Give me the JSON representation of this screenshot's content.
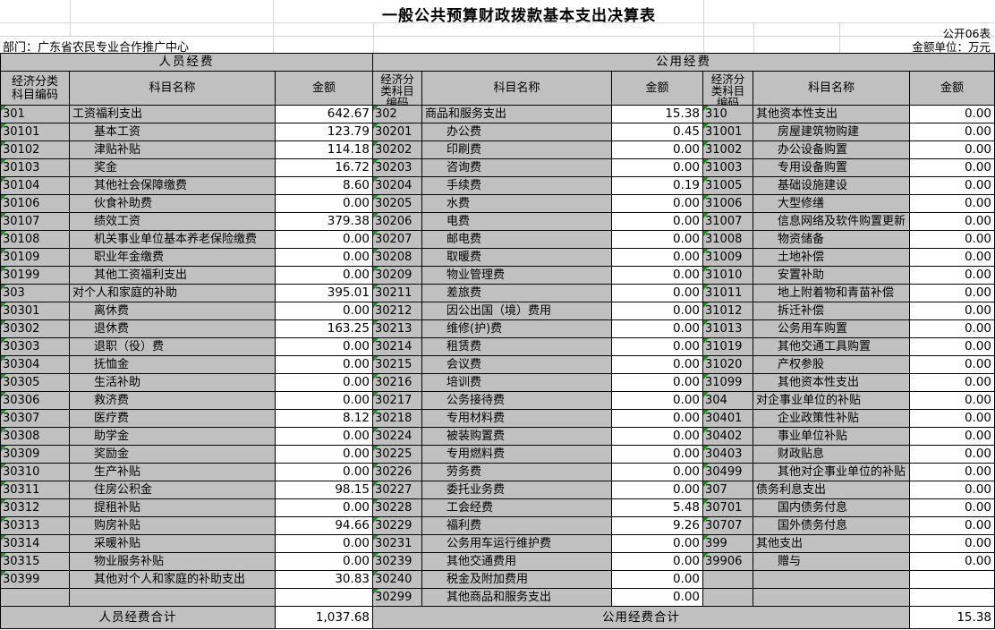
{
  "title": "一般公共预算财政拨款基本支出决算表",
  "meta": {
    "sheet_no": "公开06表",
    "department": "部门：广东省农民专业合作推广中心",
    "unit_label": "金额单位：万元"
  },
  "table": {
    "group_headers": [
      "人员经费",
      "公用经费"
    ],
    "column_headers": {
      "code": "经济分类科目编码",
      "code_lines_left": "经济分类\n科目编码",
      "code_lines_narrow": "经济分\n类科目\n编码",
      "subject": "科目名称",
      "amount": "金额"
    },
    "personnel": {
      "rows": [
        {
          "code": "301",
          "name": "工资福利支出",
          "amount": "642.67",
          "indent": 0
        },
        {
          "code": "30101",
          "name": "基本工资",
          "amount": "123.79",
          "indent": 1
        },
        {
          "code": "30102",
          "name": "津贴补贴",
          "amount": "114.18",
          "indent": 1
        },
        {
          "code": "30103",
          "name": "奖金",
          "amount": "16.72",
          "indent": 1
        },
        {
          "code": "30104",
          "name": "其他社会保障缴费",
          "amount": "8.60",
          "indent": 1
        },
        {
          "code": "30106",
          "name": "伙食补助费",
          "amount": "0.00",
          "indent": 1
        },
        {
          "code": "30107",
          "name": "绩效工资",
          "amount": "379.38",
          "indent": 1
        },
        {
          "code": "30108",
          "name": "机关事业单位基本养老保险缴费",
          "amount": "0.00",
          "indent": 1
        },
        {
          "code": "30109",
          "name": "职业年金缴费",
          "amount": "0.00",
          "indent": 1
        },
        {
          "code": "30199",
          "name": "其他工资福利支出",
          "amount": "0.00",
          "indent": 1
        },
        {
          "code": "303",
          "name": "对个人和家庭的补助",
          "amount": "395.01",
          "indent": 0
        },
        {
          "code": "30301",
          "name": "离休费",
          "amount": "0.00",
          "indent": 1
        },
        {
          "code": "30302",
          "name": "退休费",
          "amount": "163.25",
          "indent": 1
        },
        {
          "code": "30303",
          "name": "退职（役）费",
          "amount": "0.00",
          "indent": 1
        },
        {
          "code": "30304",
          "name": "抚恤金",
          "amount": "0.00",
          "indent": 1
        },
        {
          "code": "30305",
          "name": "生活补助",
          "amount": "0.00",
          "indent": 1
        },
        {
          "code": "30306",
          "name": "救济费",
          "amount": "0.00",
          "indent": 1
        },
        {
          "code": "30307",
          "name": "医疗费",
          "amount": "8.12",
          "indent": 1
        },
        {
          "code": "30308",
          "name": "助学金",
          "amount": "0.00",
          "indent": 1
        },
        {
          "code": "30309",
          "name": "奖励金",
          "amount": "0.00",
          "indent": 1
        },
        {
          "code": "30310",
          "name": "生产补贴",
          "amount": "0.00",
          "indent": 1
        },
        {
          "code": "30311",
          "name": "住房公积金",
          "amount": "98.15",
          "indent": 1
        },
        {
          "code": "30312",
          "name": "提租补贴",
          "amount": "0.00",
          "indent": 1
        },
        {
          "code": "30313",
          "name": "购房补贴",
          "amount": "94.66",
          "indent": 1
        },
        {
          "code": "30314",
          "name": "采暖补贴",
          "amount": "0.00",
          "indent": 1
        },
        {
          "code": "30315",
          "name": "物业服务补贴",
          "amount": "0.00",
          "indent": 1
        },
        {
          "code": "30399",
          "name": "其他对个人和家庭的补助支出",
          "amount": "30.83",
          "indent": 1
        },
        {
          "code": "",
          "name": "",
          "amount": "",
          "indent": 0
        }
      ],
      "total_label": "人员经费合计",
      "total": "1,037.68"
    },
    "public_service": {
      "rows": [
        {
          "code": "302",
          "name": "商品和服务支出",
          "amount": "15.38",
          "indent": 0
        },
        {
          "code": "30201",
          "name": "办公费",
          "amount": "0.45",
          "indent": 1
        },
        {
          "code": "30202",
          "name": "印刷费",
          "amount": "0.00",
          "indent": 1
        },
        {
          "code": "30203",
          "name": "咨询费",
          "amount": "0.00",
          "indent": 1
        },
        {
          "code": "30204",
          "name": "手续费",
          "amount": "0.19",
          "indent": 1
        },
        {
          "code": "30205",
          "name": "水费",
          "amount": "0.00",
          "indent": 1
        },
        {
          "code": "30206",
          "name": "电费",
          "amount": "0.00",
          "indent": 1
        },
        {
          "code": "30207",
          "name": "邮电费",
          "amount": "0.00",
          "indent": 1
        },
        {
          "code": "30208",
          "name": "取暖费",
          "amount": "0.00",
          "indent": 1
        },
        {
          "code": "30209",
          "name": "物业管理费",
          "amount": "0.00",
          "indent": 1
        },
        {
          "code": "30211",
          "name": "差旅费",
          "amount": "0.00",
          "indent": 1
        },
        {
          "code": "30212",
          "name": "因公出国（境）费用",
          "amount": "0.00",
          "indent": 1
        },
        {
          "code": "30213",
          "name": "维修(护)费",
          "amount": "0.00",
          "indent": 1
        },
        {
          "code": "30214",
          "name": "租赁费",
          "amount": "0.00",
          "indent": 1
        },
        {
          "code": "30215",
          "name": "会议费",
          "amount": "0.00",
          "indent": 1
        },
        {
          "code": "30216",
          "name": "培训费",
          "amount": "0.00",
          "indent": 1
        },
        {
          "code": "30217",
          "name": "公务接待费",
          "amount": "0.00",
          "indent": 1
        },
        {
          "code": "30218",
          "name": "专用材料费",
          "amount": "0.00",
          "indent": 1
        },
        {
          "code": "30224",
          "name": "被装购置费",
          "amount": "0.00",
          "indent": 1
        },
        {
          "code": "30225",
          "name": "专用燃料费",
          "amount": "0.00",
          "indent": 1
        },
        {
          "code": "30226",
          "name": "劳务费",
          "amount": "0.00",
          "indent": 1
        },
        {
          "code": "30227",
          "name": "委托业务费",
          "amount": "0.00",
          "indent": 1
        },
        {
          "code": "30228",
          "name": "工会经费",
          "amount": "5.48",
          "indent": 1
        },
        {
          "code": "30229",
          "name": "福利费",
          "amount": "9.26",
          "indent": 1
        },
        {
          "code": "30231",
          "name": "公务用车运行维护费",
          "amount": "0.00",
          "indent": 1
        },
        {
          "code": "30239",
          "name": "其他交通费用",
          "amount": "0.00",
          "indent": 1
        },
        {
          "code": "30240",
          "name": "税金及附加费用",
          "amount": "0.00",
          "indent": 1
        },
        {
          "code": "30299",
          "name": "其他商品和服务支出",
          "amount": "0.00",
          "indent": 1
        }
      ]
    },
    "public_capital": {
      "rows": [
        {
          "code": "310",
          "name": "其他资本性支出",
          "amount": "0.00",
          "indent": 0
        },
        {
          "code": "31001",
          "name": "房屋建筑物购建",
          "amount": "0.00",
          "indent": 1
        },
        {
          "code": "31002",
          "name": "办公设备购置",
          "amount": "0.00",
          "indent": 1
        },
        {
          "code": "31003",
          "name": "专用设备购置",
          "amount": "0.00",
          "indent": 1
        },
        {
          "code": "31005",
          "name": "基础设施建设",
          "amount": "0.00",
          "indent": 1
        },
        {
          "code": "31006",
          "name": "大型修缮",
          "amount": "0.00",
          "indent": 1
        },
        {
          "code": "31007",
          "name": "信息网络及软件购置更新",
          "amount": "0.00",
          "indent": 1
        },
        {
          "code": "31008",
          "name": "物资储备",
          "amount": "0.00",
          "indent": 1
        },
        {
          "code": "31009",
          "name": "土地补偿",
          "amount": "0.00",
          "indent": 1
        },
        {
          "code": "31010",
          "name": "安置补助",
          "amount": "0.00",
          "indent": 1
        },
        {
          "code": "31011",
          "name": "地上附着物和青苗补偿",
          "amount": "0.00",
          "indent": 1
        },
        {
          "code": "31012",
          "name": "拆迁补偿",
          "amount": "0.00",
          "indent": 1
        },
        {
          "code": "31013",
          "name": "公务用车购置",
          "amount": "0.00",
          "indent": 1
        },
        {
          "code": "31019",
          "name": "其他交通工具购置",
          "amount": "0.00",
          "indent": 1
        },
        {
          "code": "31020",
          "name": "产权参股",
          "amount": "0.00",
          "indent": 1
        },
        {
          "code": "31099",
          "name": "其他资本性支出",
          "amount": "0.00",
          "indent": 1
        },
        {
          "code": "304",
          "name": "对企事业单位的补贴",
          "amount": "0.00",
          "indent": 0
        },
        {
          "code": "30401",
          "name": "企业政策性补贴",
          "amount": "0.00",
          "indent": 1
        },
        {
          "code": "30402",
          "name": "事业单位补贴",
          "amount": "0.00",
          "indent": 1
        },
        {
          "code": "30403",
          "name": "财政贴息",
          "amount": "0.00",
          "indent": 1
        },
        {
          "code": "30499",
          "name": "其他对企事业单位的补贴",
          "amount": "0.00",
          "indent": 1
        },
        {
          "code": "307",
          "name": "债务利息支出",
          "amount": "0.00",
          "indent": 0
        },
        {
          "code": "30701",
          "name": "国内债务付息",
          "amount": "0.00",
          "indent": 1
        },
        {
          "code": "30707",
          "name": "国外债务付息",
          "amount": "0.00",
          "indent": 1
        },
        {
          "code": "399",
          "name": "其他支出",
          "amount": "0.00",
          "indent": 0
        },
        {
          "code": "39906",
          "name": "赠与",
          "amount": "0.00",
          "indent": 1
        },
        {
          "code": "",
          "name": "",
          "amount": "",
          "indent": 0
        },
        {
          "code": "",
          "name": "",
          "amount": "",
          "indent": 0
        }
      ]
    },
    "public_total_label": "公用经费合计",
    "public_total": "15.38",
    "colors": {
      "header_bg": "#c0c0c0",
      "amount_bg": "#ffffff",
      "border": "#000000",
      "top_grid": "#d4d4d4",
      "code_flag_green": "#1a8c1a"
    }
  }
}
